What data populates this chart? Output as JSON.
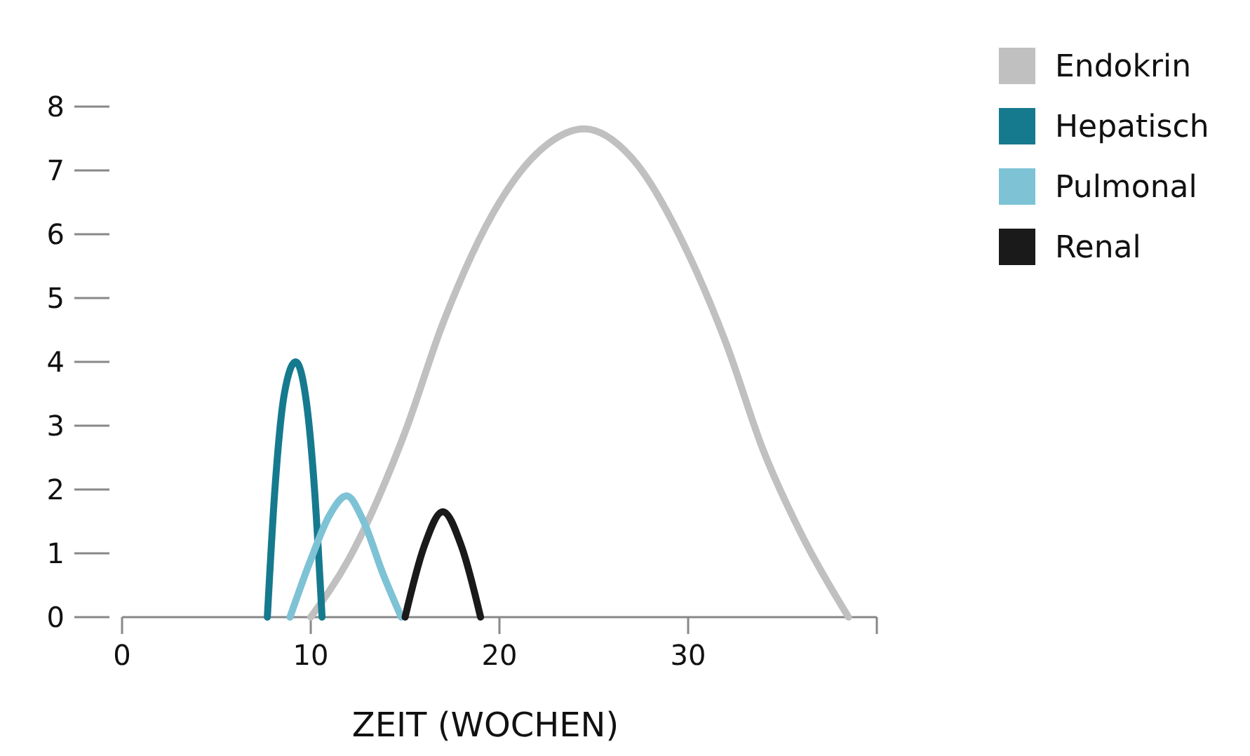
{
  "chart_data": {
    "type": "line",
    "xlabel": "ZEIT (WOCHEN)",
    "xlim": [
      0,
      40
    ],
    "xticks": [
      0,
      10,
      20,
      30,
      {
        "value": 40,
        "label": null
      }
    ],
    "ylim": [
      0,
      8
    ],
    "yticks": [
      0,
      1,
      2,
      3,
      4,
      5,
      6,
      7,
      8
    ],
    "legend": "top right",
    "grid": false,
    "marker": "none",
    "line_style": "solid",
    "series": [
      {
        "name": "Endokrin",
        "color": "#c0c0c0",
        "x": [
          10,
          12,
          15,
          17,
          20,
          22.5,
          24.5,
          27,
          30,
          32,
          34,
          36,
          38.5
        ],
        "values": [
          0,
          0.9,
          2.9,
          4.6,
          6.5,
          7.4,
          7.65,
          7.2,
          5.7,
          4.3,
          2.6,
          1.3,
          0
        ]
      },
      {
        "name": "Hepatisch",
        "color": "#167a8e",
        "x": [
          7.7,
          8.1,
          8.6,
          9.2,
          9.8,
          10.2,
          10.6
        ],
        "values": [
          0,
          2,
          3.5,
          4,
          3.3,
          2,
          0
        ]
      },
      {
        "name": "Pulmonal",
        "color": "#7ec2d6",
        "x": [
          8.9,
          10,
          11,
          11.9,
          12.8,
          13.8,
          14.8
        ],
        "values": [
          0,
          0.9,
          1.6,
          1.9,
          1.5,
          0.7,
          0
        ]
      },
      {
        "name": "Renal",
        "color": "#1a1a1a",
        "x": [
          15,
          16,
          17,
          18,
          19
        ],
        "values": [
          0,
          1.1,
          1.65,
          1.1,
          0
        ]
      }
    ]
  }
}
